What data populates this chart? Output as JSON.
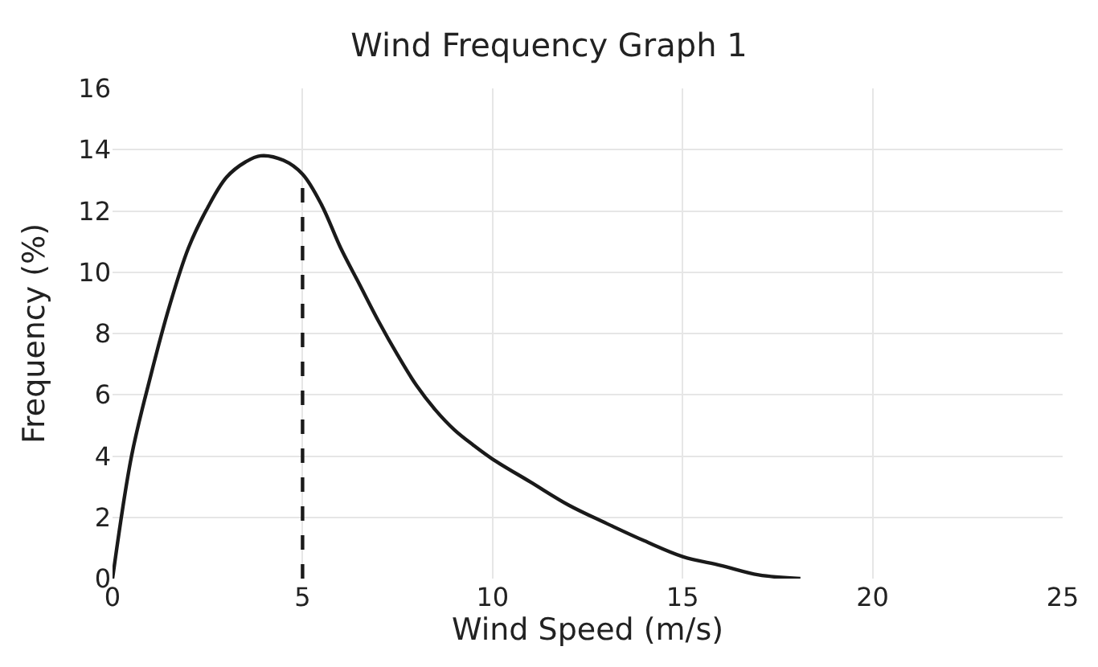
{
  "chart_data": {
    "type": "line",
    "title": "Wind Frequency Graph 1",
    "xlabel": "Wind Speed (m/s)",
    "ylabel": "Frequency (%)",
    "xlim": [
      0,
      25
    ],
    "xticks": [
      0,
      5,
      10,
      15,
      20,
      25
    ],
    "ylim": [
      0,
      16
    ],
    "yticks": [
      0,
      2,
      4,
      6,
      8,
      10,
      12,
      14,
      16
    ],
    "grid": true,
    "marker": "none",
    "series": [
      {
        "color": "#1a1a1a",
        "line_style": "solid",
        "x": [
          0,
          0.5,
          1,
          1.5,
          2,
          2.5,
          3,
          3.5,
          3.9,
          4.5,
          5,
          5.5,
          6,
          6.5,
          7,
          7.5,
          8,
          8.5,
          9,
          9.5,
          10,
          11,
          12,
          13,
          14,
          15,
          16,
          17,
          18.1
        ],
        "values": [
          0,
          4.0,
          6.6,
          8.9,
          10.8,
          12.1,
          13.1,
          13.6,
          13.8,
          13.65,
          13.2,
          12.2,
          10.8,
          9.6,
          8.4,
          7.3,
          6.3,
          5.5,
          4.85,
          4.35,
          3.9,
          3.15,
          2.4,
          1.8,
          1.23,
          0.72,
          0.43,
          0.12,
          0
        ]
      },
      {
        "color": "#1a1a1a",
        "line_style": "dashed",
        "x": [
          5,
          5
        ],
        "values": [
          0,
          13.2
        ]
      }
    ]
  }
}
